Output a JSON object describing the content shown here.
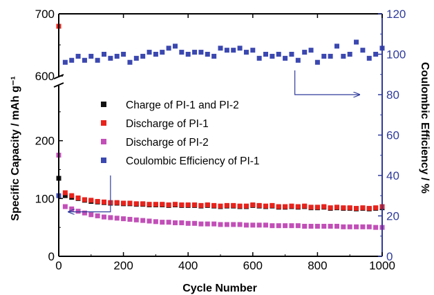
{
  "chart_data": {
    "type": "scatter",
    "title": "",
    "xlabel": "Cycle Number",
    "ylabel_left": "Specific Capacity / mAh g⁻¹",
    "ylabel_right": "Coulombic Efficiency / %",
    "xlim": [
      0,
      1000
    ],
    "x_ticks": [
      "0",
      "200",
      "400",
      "600",
      "800",
      "1000"
    ],
    "y_left_ticks": [
      "0",
      "100",
      "200",
      "600",
      "700"
    ],
    "y_right_ticks": [
      "0",
      "20",
      "40",
      "60",
      "80",
      "100",
      "120"
    ],
    "y_left_lower_range": [
      0,
      300
    ],
    "y_left_upper_range": [
      600,
      700
    ],
    "y_right_range": [
      0,
      120
    ],
    "legend_position": "center",
    "colors": {
      "axis_left": "#000000",
      "axis_right": "#2f3b9a",
      "charge": "#111111",
      "discharge_pi1": "#e8231c",
      "discharge_pi2": "#c24fb8",
      "coulombic": "#3b48b0"
    },
    "series": [
      {
        "name": "Charge of PI-1 and PI-2",
        "axis": "left",
        "color": "#111111",
        "x": [
          0,
          20,
          40,
          60,
          80,
          100,
          120,
          140,
          160,
          180,
          200,
          220,
          240,
          260,
          280,
          300,
          320,
          340,
          360,
          380,
          400,
          420,
          440,
          460,
          480,
          500,
          520,
          540,
          560,
          580,
          600,
          620,
          640,
          660,
          680,
          700,
          720,
          740,
          760,
          780,
          800,
          820,
          840,
          860,
          880,
          900,
          920,
          940,
          960,
          980,
          1000
        ],
        "values": [
          135,
          105,
          102,
          100,
          97,
          95,
          94,
          93,
          92,
          92,
          91,
          91,
          90,
          90,
          89,
          89,
          89,
          88,
          89,
          88,
          88,
          88,
          87,
          88,
          87,
          86,
          87,
          87,
          86,
          86,
          88,
          87,
          86,
          87,
          85,
          85,
          86,
          85,
          86,
          84,
          84,
          85,
          83,
          84,
          83,
          83,
          82,
          83,
          82,
          83,
          84
        ]
      },
      {
        "name": "Discharge of PI-1",
        "axis": "left",
        "color": "#e8231c",
        "x": [
          0,
          20,
          40,
          60,
          80,
          100,
          120,
          140,
          160,
          180,
          200,
          220,
          240,
          260,
          280,
          300,
          320,
          340,
          360,
          380,
          400,
          420,
          440,
          460,
          480,
          500,
          520,
          540,
          560,
          580,
          600,
          620,
          640,
          660,
          680,
          700,
          720,
          740,
          760,
          780,
          800,
          820,
          840,
          860,
          880,
          900,
          920,
          940,
          960,
          980,
          1000
        ],
        "values": [
          680,
          110,
          105,
          101,
          98,
          97,
          95,
          94,
          93,
          93,
          92,
          92,
          91,
          91,
          90,
          90,
          90,
          89,
          90,
          89,
          89,
          89,
          88,
          89,
          88,
          87,
          88,
          88,
          87,
          87,
          89,
          88,
          87,
          88,
          86,
          86,
          87,
          86,
          87,
          85,
          85,
          86,
          84,
          85,
          84,
          84,
          83,
          84,
          83,
          84,
          86
        ]
      },
      {
        "name": "Discharge of PI-2",
        "axis": "left",
        "color": "#c24fb8",
        "x": [
          0,
          20,
          40,
          60,
          80,
          100,
          120,
          140,
          160,
          180,
          200,
          220,
          240,
          260,
          280,
          300,
          320,
          340,
          360,
          380,
          400,
          420,
          440,
          460,
          480,
          500,
          520,
          540,
          560,
          580,
          600,
          620,
          640,
          660,
          680,
          700,
          720,
          740,
          760,
          780,
          800,
          820,
          840,
          860,
          880,
          900,
          920,
          940,
          960,
          980,
          1000
        ],
        "values": [
          175,
          86,
          82,
          78,
          75,
          72,
          70,
          68,
          67,
          66,
          65,
          64,
          63,
          62,
          61,
          60,
          59,
          59,
          58,
          58,
          57,
          57,
          56,
          56,
          56,
          55,
          55,
          55,
          55,
          54,
          54,
          54,
          54,
          53,
          53,
          53,
          53,
          53,
          52,
          52,
          52,
          52,
          52,
          52,
          51,
          51,
          51,
          51,
          51,
          50,
          50
        ]
      },
      {
        "name": "Coulombic Efficiency of PI-1",
        "axis": "right",
        "color": "#3b48b0",
        "x": [
          0,
          20,
          40,
          60,
          80,
          100,
          120,
          140,
          160,
          180,
          200,
          220,
          240,
          260,
          280,
          300,
          320,
          340,
          360,
          380,
          400,
          420,
          440,
          460,
          480,
          500,
          520,
          540,
          560,
          580,
          600,
          620,
          640,
          660,
          680,
          700,
          720,
          740,
          760,
          780,
          800,
          820,
          840,
          860,
          880,
          900,
          920,
          940,
          960,
          980,
          1000
        ],
        "values": [
          30,
          96,
          97,
          99,
          97,
          99,
          97,
          100,
          98,
          99,
          100,
          96,
          98,
          99,
          101,
          100,
          101,
          103,
          104,
          101,
          100,
          101,
          101,
          100,
          99,
          103,
          102,
          102,
          103,
          101,
          102,
          98,
          100,
          99,
          100,
          98,
          100,
          97,
          101,
          102,
          96,
          99,
          99,
          104,
          99,
          100,
          106,
          102,
          98,
          100,
          103
        ]
      }
    ],
    "annotations": [
      {
        "description": "arrow pointing right toward the right axis",
        "from": [
          730,
          92
        ],
        "corner": [
          730,
          80
        ],
        "to": [
          930,
          80
        ],
        "axis": "right"
      },
      {
        "description": "arrow pointing left toward the left axis",
        "from": [
          160,
          40
        ],
        "corner": [
          160,
          22
        ],
        "to": [
          30,
          22
        ],
        "axis": "left"
      }
    ]
  }
}
